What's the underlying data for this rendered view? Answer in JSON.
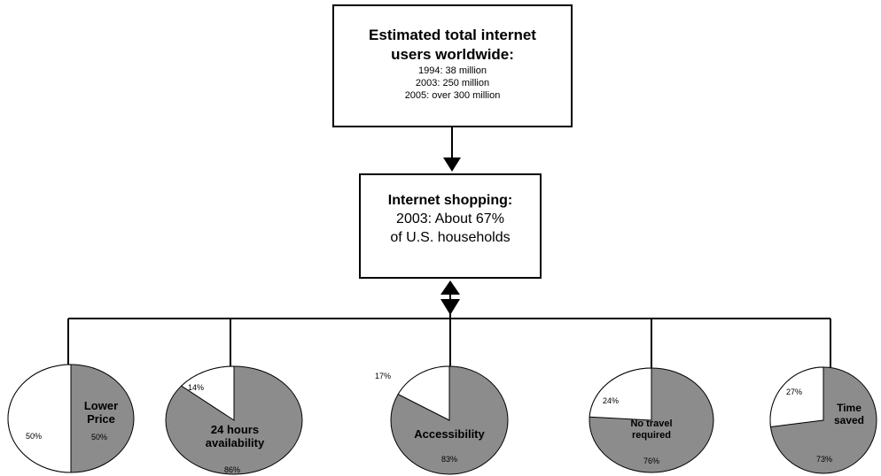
{
  "top_box": {
    "title_line1": "Estimated total internet",
    "title_line2": "users worldwide:",
    "items": [
      "1994: 38 million",
      "2003: 250 million",
      "2005: over 300 million"
    ]
  },
  "middle_box": {
    "title": "Internet shopping:",
    "line1": "2003: About 67%",
    "line2": "of U.S. households"
  },
  "colors": {
    "filled": "#8c8c8c",
    "empty": "#ffffff",
    "stroke": "#000000"
  },
  "pies": [
    {
      "label_lines": [
        "Lower",
        "Price"
      ],
      "filled_pct": 50,
      "filled_text": "50%",
      "other_text": "50%"
    },
    {
      "label_lines": [
        "24 hours",
        "availability"
      ],
      "filled_pct": 86,
      "filled_text": "86%",
      "other_text": "14%"
    },
    {
      "label_lines": [
        "Accessibility"
      ],
      "filled_pct": 83,
      "filled_text": "83%",
      "other_text": "17%"
    },
    {
      "label_lines": [
        "No travel",
        "required"
      ],
      "filled_pct": 76,
      "filled_text": "76%",
      "other_text": "24%"
    },
    {
      "label_lines": [
        "Time",
        "saved"
      ],
      "filled_pct": 73,
      "filled_text": "73%",
      "other_text": "27%"
    }
  ]
}
